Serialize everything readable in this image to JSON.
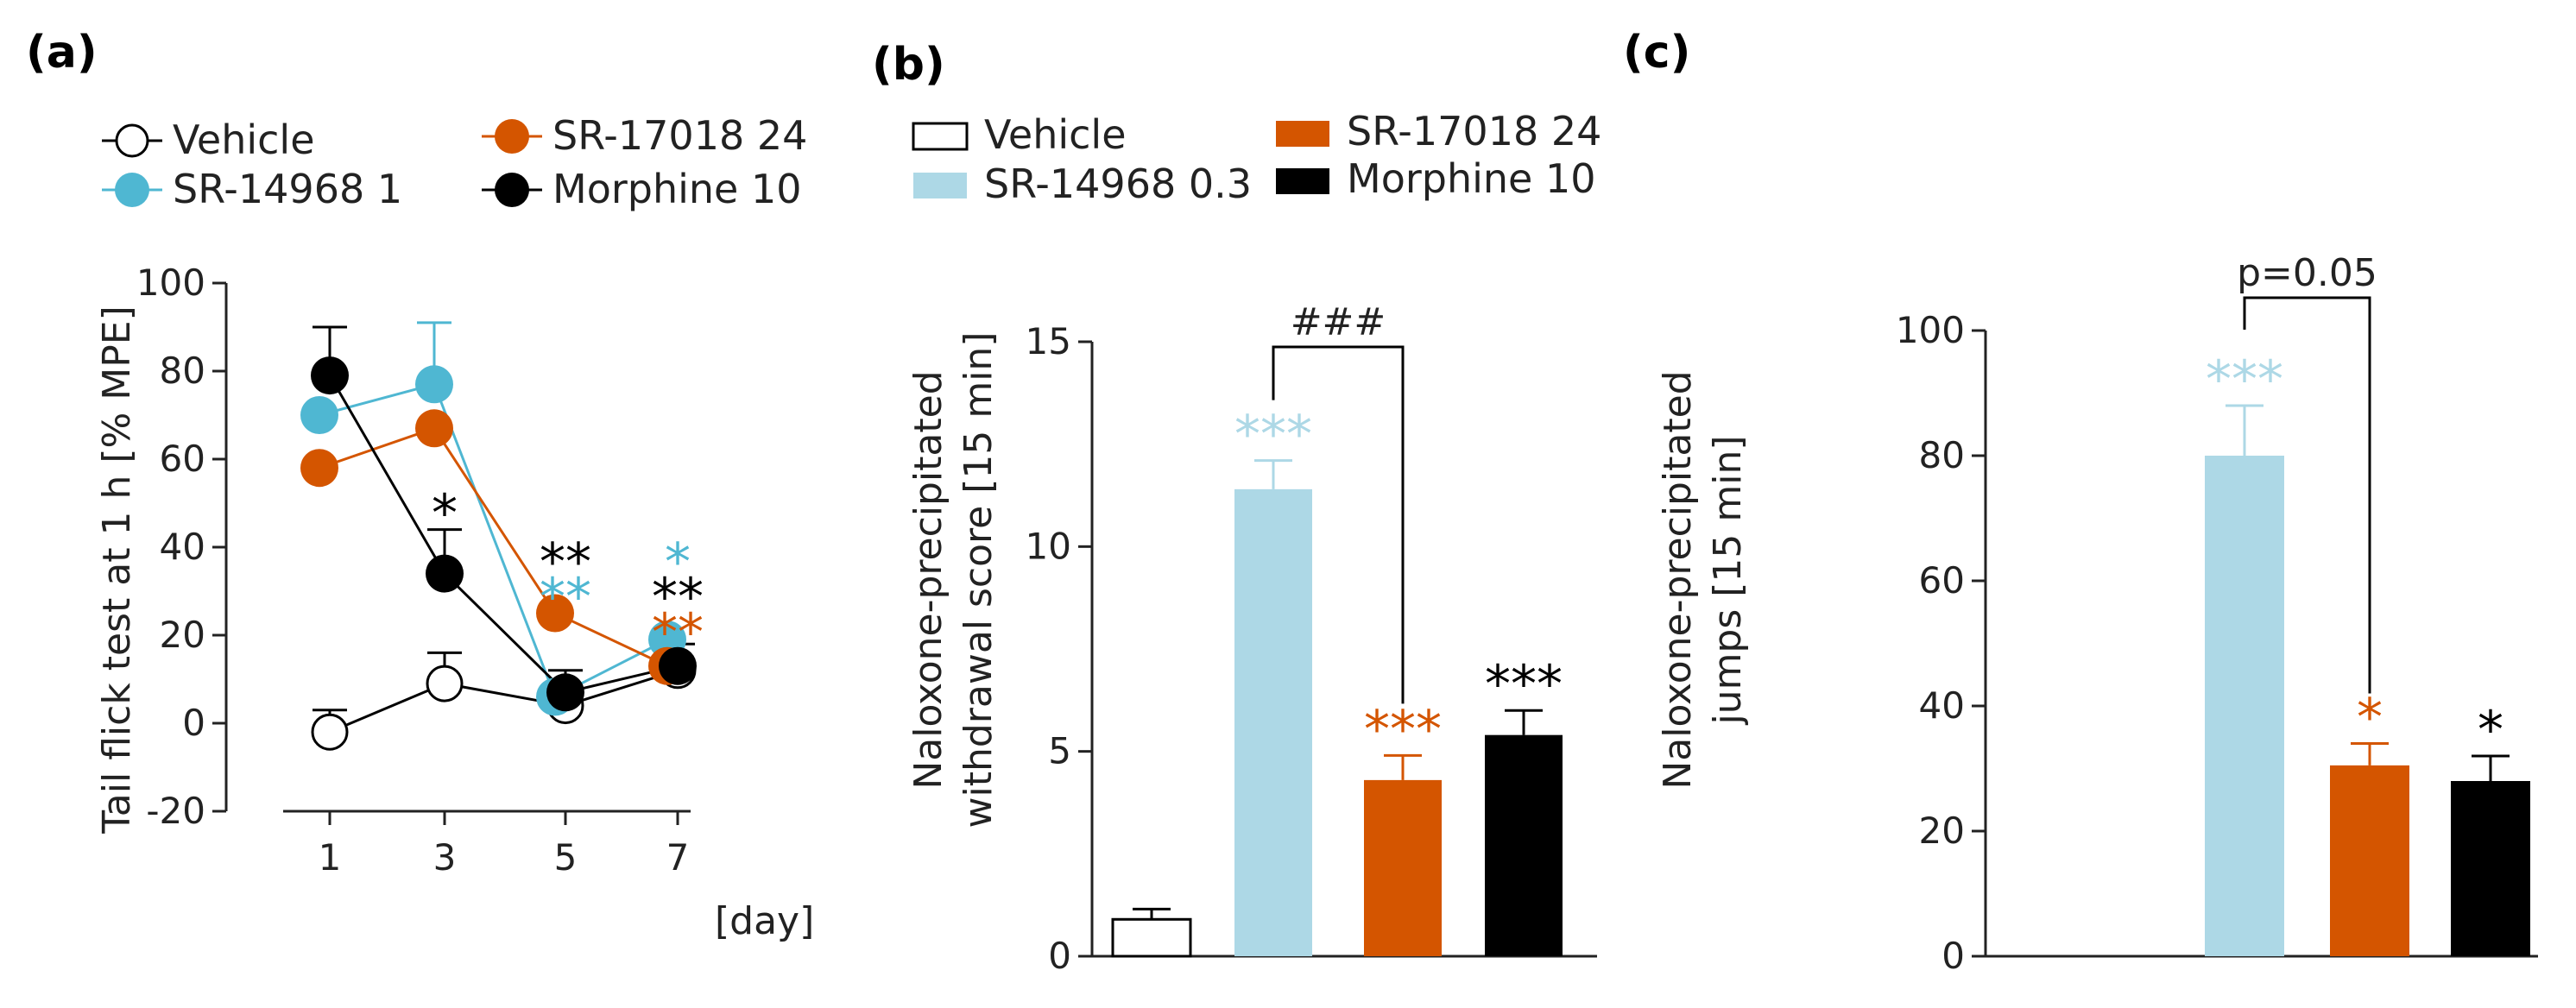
{
  "colors": {
    "vehicle": "#ffffff",
    "sr14968": "#4fb7d2",
    "sr14968_light": "#add8e6",
    "sr17018": "#d45500",
    "morphine": "#000000",
    "sig_vehicle_b": "#add8e6"
  },
  "chart_data": [
    {
      "panel": "(a)",
      "type": "line",
      "ylabel": "Tail flick test at 1 h [% MPE]",
      "xlabel": "[day]",
      "x_ticks": [
        "1",
        "3",
        "5",
        "7"
      ],
      "y_ticks": [
        "-20",
        "0",
        "20",
        "40",
        "60",
        "80",
        "100"
      ],
      "ylim": [
        -20,
        100
      ],
      "legend": [
        "Vehicle",
        "SR-14968 1",
        "SR-17018 24",
        "Morphine 10"
      ],
      "series": [
        {
          "name": "Vehicle",
          "key": "vehicle",
          "x": [
            1,
            3,
            5,
            7
          ],
          "y": [
            -2,
            9,
            4,
            12
          ],
          "err": [
            5,
            7,
            0,
            0
          ]
        },
        {
          "name": "SR-14968 1",
          "key": "sr14968",
          "x": [
            1,
            3,
            5,
            7
          ],
          "y": [
            70,
            77,
            6,
            19
          ],
          "err": [
            0,
            14,
            0,
            0
          ]
        },
        {
          "name": "SR-17018 24",
          "key": "sr17018",
          "x": [
            1,
            3,
            5,
            7
          ],
          "y": [
            58,
            67,
            25,
            13
          ],
          "err": [
            0,
            0,
            0,
            0
          ]
        },
        {
          "name": "Morphine 10",
          "key": "morphine",
          "x": [
            1,
            3,
            5,
            7
          ],
          "y": [
            79,
            34,
            7,
            13
          ],
          "err": [
            11,
            10,
            5,
            5
          ]
        }
      ],
      "annotations": [
        {
          "x": 3,
          "y": 48,
          "text": "*",
          "key": "morphine"
        },
        {
          "x": 5,
          "y": 37,
          "text": "**",
          "key": "morphine"
        },
        {
          "x": 5,
          "y": 29,
          "text": "**",
          "key": "sr14968"
        },
        {
          "x": 7,
          "y": 37,
          "text": "*",
          "key": "sr14968"
        },
        {
          "x": 7,
          "y": 29,
          "text": "**",
          "key": "morphine"
        },
        {
          "x": 7,
          "y": 21,
          "text": "**",
          "key": "sr17018"
        }
      ]
    },
    {
      "panel": "(b)",
      "type": "bar",
      "ylabel_lines": [
        "Naloxone-precipitated",
        "withdrawal score [15 min]"
      ],
      "y_ticks": [
        "0",
        "5",
        "10",
        "15"
      ],
      "ylim": [
        0,
        15
      ],
      "legend": [
        "Vehicle",
        "SR-14968 0.3",
        "SR-17018 24",
        "Morphine 10"
      ],
      "categories": [
        "Vehicle",
        "SR-14968 0.3",
        "SR-17018 24",
        "Morphine 10"
      ],
      "keys": [
        "vehicle",
        "sr14968_light",
        "sr17018",
        "morphine"
      ],
      "values": [
        0.9,
        11.4,
        4.3,
        5.4
      ],
      "err": [
        0.25,
        0.7,
        0.6,
        0.6
      ],
      "significance": [
        "",
        "***",
        "***",
        "***"
      ],
      "bracket": {
        "from": 1,
        "to": 2,
        "text": "###"
      }
    },
    {
      "panel": "(c)",
      "type": "bar",
      "ylabel_lines": [
        "Naloxone-precipitated",
        "jumps [15 min]"
      ],
      "y_ticks": [
        "0",
        "20",
        "40",
        "60",
        "80",
        "100"
      ],
      "ylim": [
        0,
        100
      ],
      "categories": [
        "Vehicle",
        "SR-14968 0.3",
        "SR-17018 24",
        "Morphine 10"
      ],
      "keys": [
        "vehicle",
        "sr14968_light",
        "sr17018",
        "morphine"
      ],
      "values": [
        0,
        80,
        30.5,
        28
      ],
      "err": [
        0,
        8,
        3.5,
        4
      ],
      "significance": [
        "",
        "***",
        "*",
        "*"
      ],
      "bracket": {
        "from": 1,
        "to": 2,
        "text": "p=0.05"
      }
    }
  ]
}
